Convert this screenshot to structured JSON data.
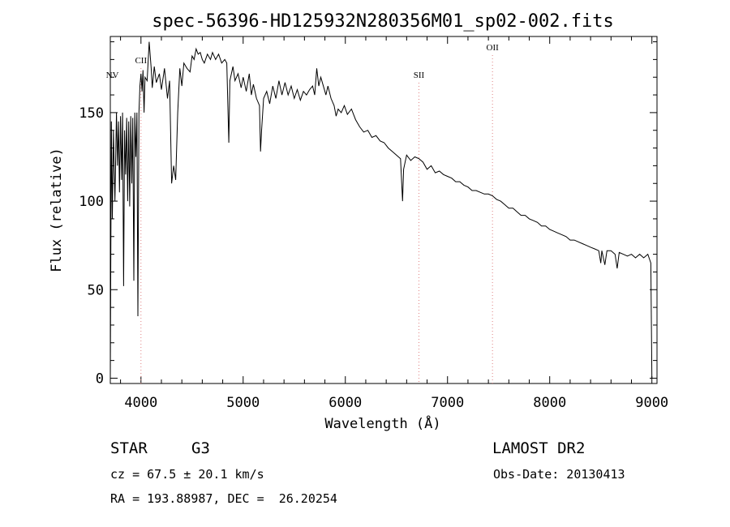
{
  "chart_data": {
    "type": "line",
    "title": "spec-56396-HD125932N280356M01_sp02-002.fits",
    "xlabel": "Wavelength (Å)",
    "ylabel": "Flux (relative)",
    "xlim": [
      3700,
      9050
    ],
    "ylim": [
      -3,
      193
    ],
    "x_ticks": [
      4000,
      5000,
      6000,
      7000,
      8000,
      9000
    ],
    "x_tick_labels": [
      "4000",
      "5000",
      "6000",
      "7000",
      "8000",
      "9000"
    ],
    "y_ticks": [
      0,
      50,
      100,
      150
    ],
    "y_tick_labels": [
      "0",
      "50",
      "100",
      "150"
    ],
    "grid": false,
    "legend": "none",
    "line_color": "#000000",
    "line_marker_color": "#e08080",
    "lines": [
      {
        "label": "NV",
        "x": 3720,
        "dashed": false
      },
      {
        "label": "CII",
        "x": 4000,
        "dashed": true
      },
      {
        "label": "SII",
        "x": 6720,
        "dashed": true
      },
      {
        "label": "OII",
        "x": 7440,
        "dashed": true
      }
    ],
    "series": [
      {
        "values": [
          [
            3700,
            0
          ],
          [
            3710,
            145
          ],
          [
            3720,
            90
          ],
          [
            3730,
            140
          ],
          [
            3745,
            100
          ],
          [
            3760,
            150
          ],
          [
            3770,
            120
          ],
          [
            3780,
            145
          ],
          [
            3790,
            105
          ],
          [
            3800,
            148
          ],
          [
            3810,
            112
          ],
          [
            3820,
            150
          ],
          [
            3830,
            52
          ],
          [
            3840,
            140
          ],
          [
            3850,
            115
          ],
          [
            3860,
            147
          ],
          [
            3870,
            100
          ],
          [
            3880,
            145
          ],
          [
            3890,
            97
          ],
          [
            3900,
            148
          ],
          [
            3910,
            110
          ],
          [
            3920,
            147
          ],
          [
            3930,
            55
          ],
          [
            3940,
            150
          ],
          [
            3950,
            125
          ],
          [
            3960,
            150
          ],
          [
            3970,
            35
          ],
          [
            3980,
            150
          ],
          [
            3990,
            165
          ],
          [
            4000,
            172
          ],
          [
            4010,
            162
          ],
          [
            4020,
            174
          ],
          [
            4030,
            150
          ],
          [
            4040,
            170
          ],
          [
            4060,
            168
          ],
          [
            4080,
            190
          ],
          [
            4100,
            175
          ],
          [
            4110,
            164
          ],
          [
            4130,
            176
          ],
          [
            4150,
            167
          ],
          [
            4180,
            172
          ],
          [
            4200,
            163
          ],
          [
            4230,
            175
          ],
          [
            4260,
            158
          ],
          [
            4280,
            168
          ],
          [
            4300,
            110
          ],
          [
            4320,
            120
          ],
          [
            4340,
            112
          ],
          [
            4360,
            150
          ],
          [
            4380,
            175
          ],
          [
            4400,
            165
          ],
          [
            4420,
            178
          ],
          [
            4450,
            175
          ],
          [
            4480,
            173
          ],
          [
            4500,
            182
          ],
          [
            4520,
            180
          ],
          [
            4540,
            186
          ],
          [
            4560,
            183
          ],
          [
            4580,
            184
          ],
          [
            4600,
            180
          ],
          [
            4620,
            178
          ],
          [
            4650,
            183
          ],
          [
            4680,
            180
          ],
          [
            4700,
            184
          ],
          [
            4730,
            180
          ],
          [
            4760,
            183
          ],
          [
            4790,
            178
          ],
          [
            4820,
            180
          ],
          [
            4840,
            178
          ],
          [
            4860,
            133
          ],
          [
            4870,
            168
          ],
          [
            4900,
            176
          ],
          [
            4920,
            168
          ],
          [
            4950,
            172
          ],
          [
            4980,
            164
          ],
          [
            5000,
            170
          ],
          [
            5030,
            162
          ],
          [
            5060,
            172
          ],
          [
            5080,
            160
          ],
          [
            5100,
            166
          ],
          [
            5130,
            158
          ],
          [
            5160,
            154
          ],
          [
            5170,
            128
          ],
          [
            5180,
            140
          ],
          [
            5200,
            158
          ],
          [
            5230,
            162
          ],
          [
            5260,
            155
          ],
          [
            5290,
            165
          ],
          [
            5320,
            158
          ],
          [
            5350,
            168
          ],
          [
            5380,
            160
          ],
          [
            5410,
            167
          ],
          [
            5440,
            160
          ],
          [
            5470,
            165
          ],
          [
            5500,
            158
          ],
          [
            5530,
            163
          ],
          [
            5560,
            157
          ],
          [
            5590,
            162
          ],
          [
            5620,
            160
          ],
          [
            5650,
            163
          ],
          [
            5680,
            165
          ],
          [
            5700,
            160
          ],
          [
            5720,
            175
          ],
          [
            5740,
            165
          ],
          [
            5760,
            170
          ],
          [
            5790,
            164
          ],
          [
            5810,
            160
          ],
          [
            5830,
            165
          ],
          [
            5860,
            158
          ],
          [
            5890,
            154
          ],
          [
            5910,
            148
          ],
          [
            5930,
            152
          ],
          [
            5960,
            150
          ],
          [
            5990,
            154
          ],
          [
            6020,
            149
          ],
          [
            6060,
            152
          ],
          [
            6100,
            146
          ],
          [
            6140,
            142
          ],
          [
            6180,
            139
          ],
          [
            6220,
            140
          ],
          [
            6260,
            136
          ],
          [
            6300,
            137
          ],
          [
            6340,
            134
          ],
          [
            6380,
            133
          ],
          [
            6420,
            130
          ],
          [
            6460,
            128
          ],
          [
            6500,
            126
          ],
          [
            6540,
            124
          ],
          [
            6560,
            100
          ],
          [
            6570,
            118
          ],
          [
            6600,
            126
          ],
          [
            6640,
            123
          ],
          [
            6680,
            125
          ],
          [
            6720,
            124
          ],
          [
            6760,
            122
          ],
          [
            6800,
            118
          ],
          [
            6840,
            120
          ],
          [
            6880,
            116
          ],
          [
            6920,
            117
          ],
          [
            6960,
            115
          ],
          [
            7000,
            114
          ],
          [
            7040,
            113
          ],
          [
            7080,
            111
          ],
          [
            7120,
            111
          ],
          [
            7160,
            109
          ],
          [
            7200,
            108
          ],
          [
            7240,
            106
          ],
          [
            7280,
            106
          ],
          [
            7320,
            105
          ],
          [
            7360,
            104
          ],
          [
            7400,
            104
          ],
          [
            7440,
            103
          ],
          [
            7480,
            101
          ],
          [
            7520,
            100
          ],
          [
            7560,
            98
          ],
          [
            7600,
            96
          ],
          [
            7640,
            96
          ],
          [
            7680,
            94
          ],
          [
            7720,
            92
          ],
          [
            7760,
            92
          ],
          [
            7800,
            90
          ],
          [
            7840,
            89
          ],
          [
            7880,
            88
          ],
          [
            7920,
            86
          ],
          [
            7960,
            86
          ],
          [
            8000,
            84
          ],
          [
            8040,
            83
          ],
          [
            8080,
            82
          ],
          [
            8120,
            81
          ],
          [
            8160,
            80
          ],
          [
            8200,
            78
          ],
          [
            8240,
            78
          ],
          [
            8280,
            77
          ],
          [
            8320,
            76
          ],
          [
            8360,
            75
          ],
          [
            8400,
            74
          ],
          [
            8440,
            73
          ],
          [
            8480,
            72
          ],
          [
            8500,
            65
          ],
          [
            8510,
            72
          ],
          [
            8540,
            64
          ],
          [
            8560,
            72
          ],
          [
            8600,
            72
          ],
          [
            8640,
            70
          ],
          [
            8660,
            62
          ],
          [
            8680,
            71
          ],
          [
            8720,
            70
          ],
          [
            8760,
            69
          ],
          [
            8800,
            70
          ],
          [
            8840,
            68
          ],
          [
            8880,
            70
          ],
          [
            8920,
            68
          ],
          [
            8960,
            70
          ],
          [
            8990,
            65
          ],
          [
            9000,
            0
          ]
        ]
      }
    ]
  },
  "info": {
    "object_type": "STAR",
    "spectral_class": "G3",
    "survey": "LAMOST DR2",
    "redshift": "cz = 67.5 ± 20.1 km/s",
    "obs_date": "Obs-Date: 20130413",
    "coords": "RA = 193.88987, DEC =  26.20254"
  }
}
